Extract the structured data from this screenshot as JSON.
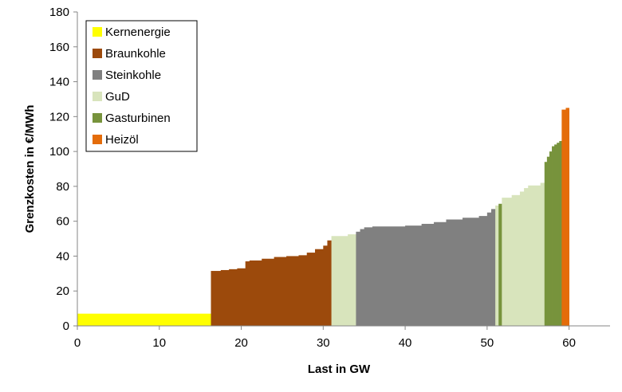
{
  "chart_data": {
    "type": "bar",
    "subtype": "merit-order step chart",
    "title": "",
    "xlabel": "Last in GW",
    "ylabel": "Grenzkosten in €/MWh",
    "xlim": [
      0,
      65
    ],
    "ylim": [
      0,
      180
    ],
    "xticks": [
      0,
      10,
      20,
      30,
      40,
      50,
      60
    ],
    "yticks": [
      0,
      20,
      40,
      60,
      80,
      100,
      120,
      140,
      160,
      180
    ],
    "grid": false,
    "legend_position": "top-left",
    "legend": [
      {
        "name": "Kernenergie",
        "color": "#ffff00"
      },
      {
        "name": "Braunkohle",
        "color": "#9c4a0c"
      },
      {
        "name": "Steinkohle",
        "color": "#808080"
      },
      {
        "name": "GuD",
        "color": "#d8e4bc"
      },
      {
        "name": "Gasturbinen",
        "color": "#77933c"
      },
      {
        "name": "Heizöl",
        "color": "#e46c0a"
      }
    ],
    "series": [
      {
        "name": "Kernenergie",
        "color": "#ffff00",
        "steps": [
          [
            0,
            16.3,
            7
          ]
        ]
      },
      {
        "name": "Braunkohle",
        "color": "#9c4a0c",
        "steps": [
          [
            16.3,
            17.5,
            31.5
          ],
          [
            17.5,
            18.5,
            32
          ],
          [
            18.5,
            19.5,
            32.5
          ],
          [
            19.5,
            20.5,
            33
          ],
          [
            20.5,
            21.0,
            37
          ],
          [
            21.0,
            22.5,
            37.5
          ],
          [
            22.5,
            24.0,
            38.5
          ],
          [
            24.0,
            25.5,
            39.5
          ],
          [
            25.5,
            27.0,
            40
          ],
          [
            27.0,
            28.0,
            40.5
          ],
          [
            28.0,
            29.0,
            42
          ],
          [
            29.0,
            30.0,
            44
          ],
          [
            30.0,
            30.5,
            46
          ],
          [
            30.5,
            31.0,
            49
          ]
        ]
      },
      {
        "name": "GuD",
        "color": "#d8e4bc",
        "steps": [
          [
            31.0,
            33.0,
            51.5
          ],
          [
            33.0,
            34.0,
            52.5
          ]
        ]
      },
      {
        "name": "Steinkohle",
        "color": "#808080",
        "steps": [
          [
            34.0,
            34.5,
            54
          ],
          [
            34.5,
            35.0,
            55.5
          ],
          [
            35.0,
            36.0,
            56.5
          ],
          [
            36.0,
            40.0,
            57
          ],
          [
            40.0,
            42.0,
            57.5
          ],
          [
            42.0,
            43.5,
            58.5
          ],
          [
            43.5,
            45.0,
            59.5
          ],
          [
            45.0,
            47.0,
            61
          ],
          [
            47.0,
            49.0,
            62
          ],
          [
            49.0,
            50.0,
            63
          ],
          [
            50.0,
            50.5,
            65
          ],
          [
            50.5,
            51.0,
            67
          ]
        ]
      },
      {
        "name": "GuD",
        "color": "#d8e4bc",
        "steps": [
          [
            51.0,
            51.4,
            69
          ]
        ]
      },
      {
        "name": "Gasturbinen",
        "color": "#77933c",
        "steps": [
          [
            51.4,
            51.8,
            70
          ]
        ]
      },
      {
        "name": "GuD",
        "color": "#d8e4bc",
        "steps": [
          [
            51.8,
            53.0,
            73.5
          ],
          [
            53.0,
            54.0,
            75
          ],
          [
            54.0,
            54.5,
            77
          ],
          [
            54.5,
            55.0,
            79
          ],
          [
            55.0,
            56.5,
            80.5
          ],
          [
            56.5,
            57.0,
            82
          ]
        ]
      },
      {
        "name": "Gasturbinen",
        "color": "#77933c",
        "steps": [
          [
            57.0,
            57.3,
            94
          ],
          [
            57.3,
            57.6,
            97
          ],
          [
            57.6,
            57.9,
            100
          ],
          [
            57.9,
            58.2,
            103
          ],
          [
            58.2,
            58.5,
            104
          ],
          [
            58.5,
            58.8,
            105
          ],
          [
            58.8,
            59.1,
            106
          ]
        ]
      },
      {
        "name": "Heizöl",
        "color": "#e46c0a",
        "steps": [
          [
            59.1,
            59.6,
            124
          ],
          [
            59.6,
            60.0,
            125
          ]
        ]
      }
    ]
  }
}
